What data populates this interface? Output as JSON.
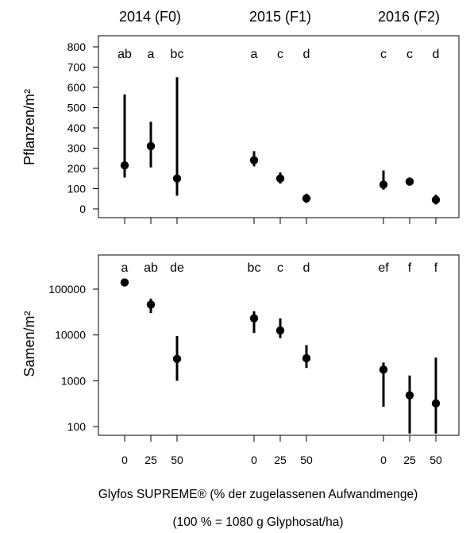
{
  "column_titles": [
    "2014 (F0)",
    "2015 (F1)",
    "2016 (F2)"
  ],
  "x_tick_labels": [
    "0",
    "25",
    "50"
  ],
  "x_axis_label": "Glyfos SUPREME® (% der zugelassenen Aufwandmenge)",
  "x_axis_sublabel": "(100 % = 1080 g Glyphosat/ha)",
  "chart_data": [
    {
      "type": "scatter",
      "panel": "top",
      "ylabel": "Pflanzen/m²",
      "yscale": "linear",
      "ylim": [
        -20,
        820
      ],
      "yticks": [
        0,
        100,
        200,
        300,
        400,
        500,
        600,
        700,
        800
      ],
      "ytick_labels": [
        "0",
        "100",
        "200",
        "300",
        "400",
        "500",
        "600",
        "700",
        "800"
      ],
      "groups": [
        "2014 (F0)",
        "2015 (F1)",
        "2016 (F2)"
      ],
      "x": [
        0,
        25,
        50
      ],
      "points": [
        {
          "group": "2014 (F0)",
          "x": 0,
          "y": 215,
          "lo": 155,
          "hi": 565,
          "letter": "ab"
        },
        {
          "group": "2014 (F0)",
          "x": 25,
          "y": 310,
          "lo": 205,
          "hi": 430,
          "letter": "a"
        },
        {
          "group": "2014 (F0)",
          "x": 50,
          "y": 150,
          "lo": 65,
          "hi": 650,
          "letter": "bc"
        },
        {
          "group": "2015 (F1)",
          "x": 0,
          "y": 240,
          "lo": 210,
          "hi": 285,
          "letter": "a"
        },
        {
          "group": "2015 (F1)",
          "x": 25,
          "y": 150,
          "lo": 125,
          "hi": 180,
          "letter": "c"
        },
        {
          "group": "2015 (F1)",
          "x": 50,
          "y": 52,
          "lo": 30,
          "hi": 75,
          "letter": "d"
        },
        {
          "group": "2016 (F2)",
          "x": 0,
          "y": 120,
          "lo": 95,
          "hi": 190,
          "letter": "c"
        },
        {
          "group": "2016 (F2)",
          "x": 25,
          "y": 135,
          "lo": 115,
          "hi": 155,
          "letter": "c"
        },
        {
          "group": "2016 (F2)",
          "x": 50,
          "y": 45,
          "lo": 22,
          "hi": 70,
          "letter": "d"
        }
      ]
    },
    {
      "type": "scatter",
      "panel": "bottom",
      "ylabel": "Samen/m²",
      "yscale": "log",
      "ylim": [
        70,
        400000
      ],
      "yticks": [
        100,
        1000,
        10000,
        100000
      ],
      "ytick_labels": [
        "100",
        "1000",
        "10000",
        "100000"
      ],
      "groups": [
        "2014 (F0)",
        "2015 (F1)",
        "2016 (F2)"
      ],
      "x": [
        0,
        25,
        50
      ],
      "points": [
        {
          "group": "2014 (F0)",
          "x": 0,
          "y": 140000,
          "lo": 130000,
          "hi": 155000,
          "letter": "a"
        },
        {
          "group": "2014 (F0)",
          "x": 25,
          "y": 46000,
          "lo": 30000,
          "hi": 62000,
          "letter": "ab"
        },
        {
          "group": "2014 (F0)",
          "x": 50,
          "y": 3000,
          "lo": 1000,
          "hi": 9500,
          "letter": "de"
        },
        {
          "group": "2015 (F1)",
          "x": 0,
          "y": 23000,
          "lo": 11000,
          "hi": 33000,
          "letter": "bc"
        },
        {
          "group": "2015 (F1)",
          "x": 25,
          "y": 12500,
          "lo": 8500,
          "hi": 23000,
          "letter": "c"
        },
        {
          "group": "2015 (F1)",
          "x": 50,
          "y": 3100,
          "lo": 1900,
          "hi": 6000,
          "letter": "d"
        },
        {
          "group": "2016 (F2)",
          "x": 0,
          "y": 1750,
          "lo": 270,
          "hi": 2500,
          "letter": "ef"
        },
        {
          "group": "2016 (F2)",
          "x": 25,
          "y": 480,
          "lo": 70,
          "hi": 1300,
          "letter": "f"
        },
        {
          "group": "2016 (F2)",
          "x": 50,
          "y": 320,
          "lo": 70,
          "hi": 3200,
          "letter": "f"
        }
      ]
    }
  ]
}
